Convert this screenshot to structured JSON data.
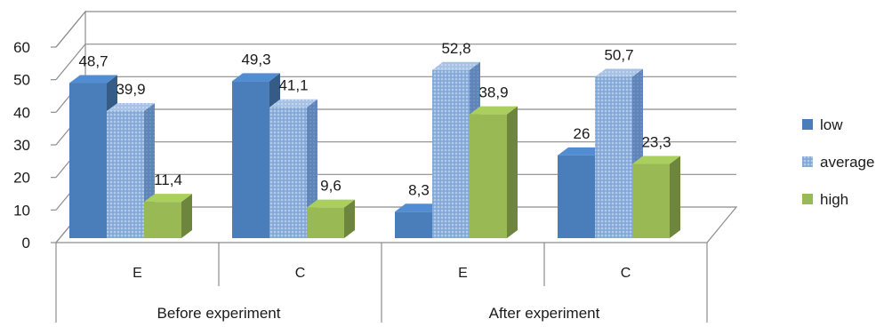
{
  "chart_data": {
    "type": "bar",
    "categories": [
      "E",
      "C",
      "E",
      "C"
    ],
    "groups": [
      {
        "label": "Before experiment",
        "categories": [
          "E",
          "C"
        ]
      },
      {
        "label": "After experiment",
        "categories": [
          "E",
          "C"
        ]
      }
    ],
    "series": [
      {
        "name": "low",
        "values": [
          48.7,
          49.3,
          8.3,
          26
        ],
        "labels": [
          "48,7",
          "49,3",
          "8,3",
          "26"
        ],
        "color": "#4a7ebb"
      },
      {
        "name": "average",
        "values": [
          39.9,
          41.1,
          52.8,
          50.7
        ],
        "labels": [
          "39,9",
          "41,1",
          "52,8",
          "50,7"
        ],
        "color": "#7fa6d8",
        "pattern": "dotted-hatch"
      },
      {
        "name": "high",
        "values": [
          11.4,
          9.6,
          38.9,
          23.3
        ],
        "labels": [
          "11,4",
          "9,6",
          "38,9",
          "23,3"
        ],
        "color": "#98b954"
      }
    ],
    "yticks": [
      "0",
      "10",
      "20",
      "30",
      "40",
      "50",
      "60"
    ],
    "ylim": [
      0,
      60
    ],
    "grid": true,
    "legend": "right",
    "style": "3d-clustered-column"
  }
}
